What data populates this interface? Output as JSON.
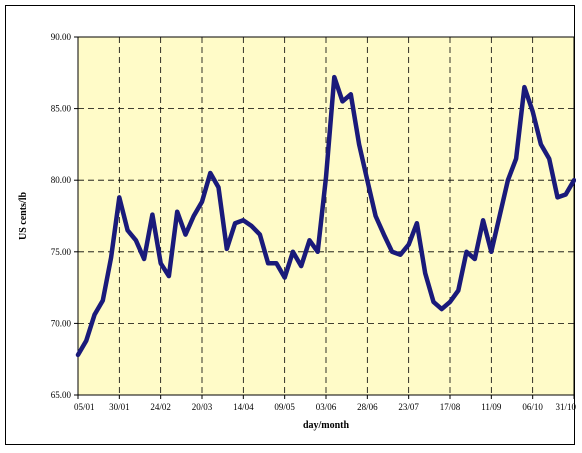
{
  "chart_data": {
    "type": "line",
    "title": "",
    "xlabel": "day/month",
    "ylabel": "US cents/lb",
    "ylim": [
      65,
      90
    ],
    "yticks": [
      "65.00",
      "70.00",
      "75.00",
      "80.00",
      "85.00",
      "90.00"
    ],
    "xticks": [
      "05/01",
      "30/01",
      "24/02",
      "20/03",
      "14/04",
      "09/05",
      "03/06",
      "28/06",
      "23/07",
      "17/08",
      "11/09",
      "06/10",
      "31/10"
    ],
    "grid": "dashed vertical and horizontal",
    "legend": "none",
    "series": [
      {
        "color": "#1a1a7a",
        "x": [
          0.0,
          0.2,
          0.4,
          0.6,
          0.8,
          1.0,
          1.2,
          1.4,
          1.6,
          1.8,
          2.0,
          2.2,
          2.4,
          2.6,
          2.8,
          3.0,
          3.2,
          3.4,
          3.6,
          3.8,
          4.0,
          4.2,
          4.4,
          4.6,
          4.8,
          5.0,
          5.2,
          5.4,
          5.6,
          5.8,
          6.0,
          6.2,
          6.4,
          6.6,
          6.8,
          7.0,
          7.2,
          7.4,
          7.6,
          7.8,
          8.0,
          8.2,
          8.4,
          8.6,
          8.8,
          9.0,
          9.2,
          9.4,
          9.6,
          9.8,
          10.0,
          10.2,
          10.4,
          10.6,
          10.8,
          11.0,
          11.2,
          11.4,
          11.6,
          11.8,
          12.0
        ],
        "y": [
          67.8,
          68.8,
          70.6,
          71.6,
          74.6,
          78.8,
          76.5,
          75.8,
          74.5,
          77.6,
          74.2,
          73.3,
          77.8,
          76.2,
          77.5,
          78.5,
          80.5,
          79.5,
          75.2,
          77.0,
          77.2,
          76.8,
          76.2,
          74.2,
          74.2,
          73.2,
          75.0,
          74.0,
          75.8,
          75.0,
          80.2,
          87.2,
          85.5,
          86.0,
          82.5,
          80.0,
          77.5,
          76.2,
          75.0,
          74.8,
          75.5,
          77.0,
          73.5,
          71.5,
          71.0,
          71.5,
          72.3,
          75.0,
          74.5,
          77.2,
          75.0,
          77.5,
          80.0,
          81.5,
          86.5,
          84.8,
          82.5,
          81.5,
          78.8,
          79.0,
          80.0
        ]
      }
    ]
  }
}
